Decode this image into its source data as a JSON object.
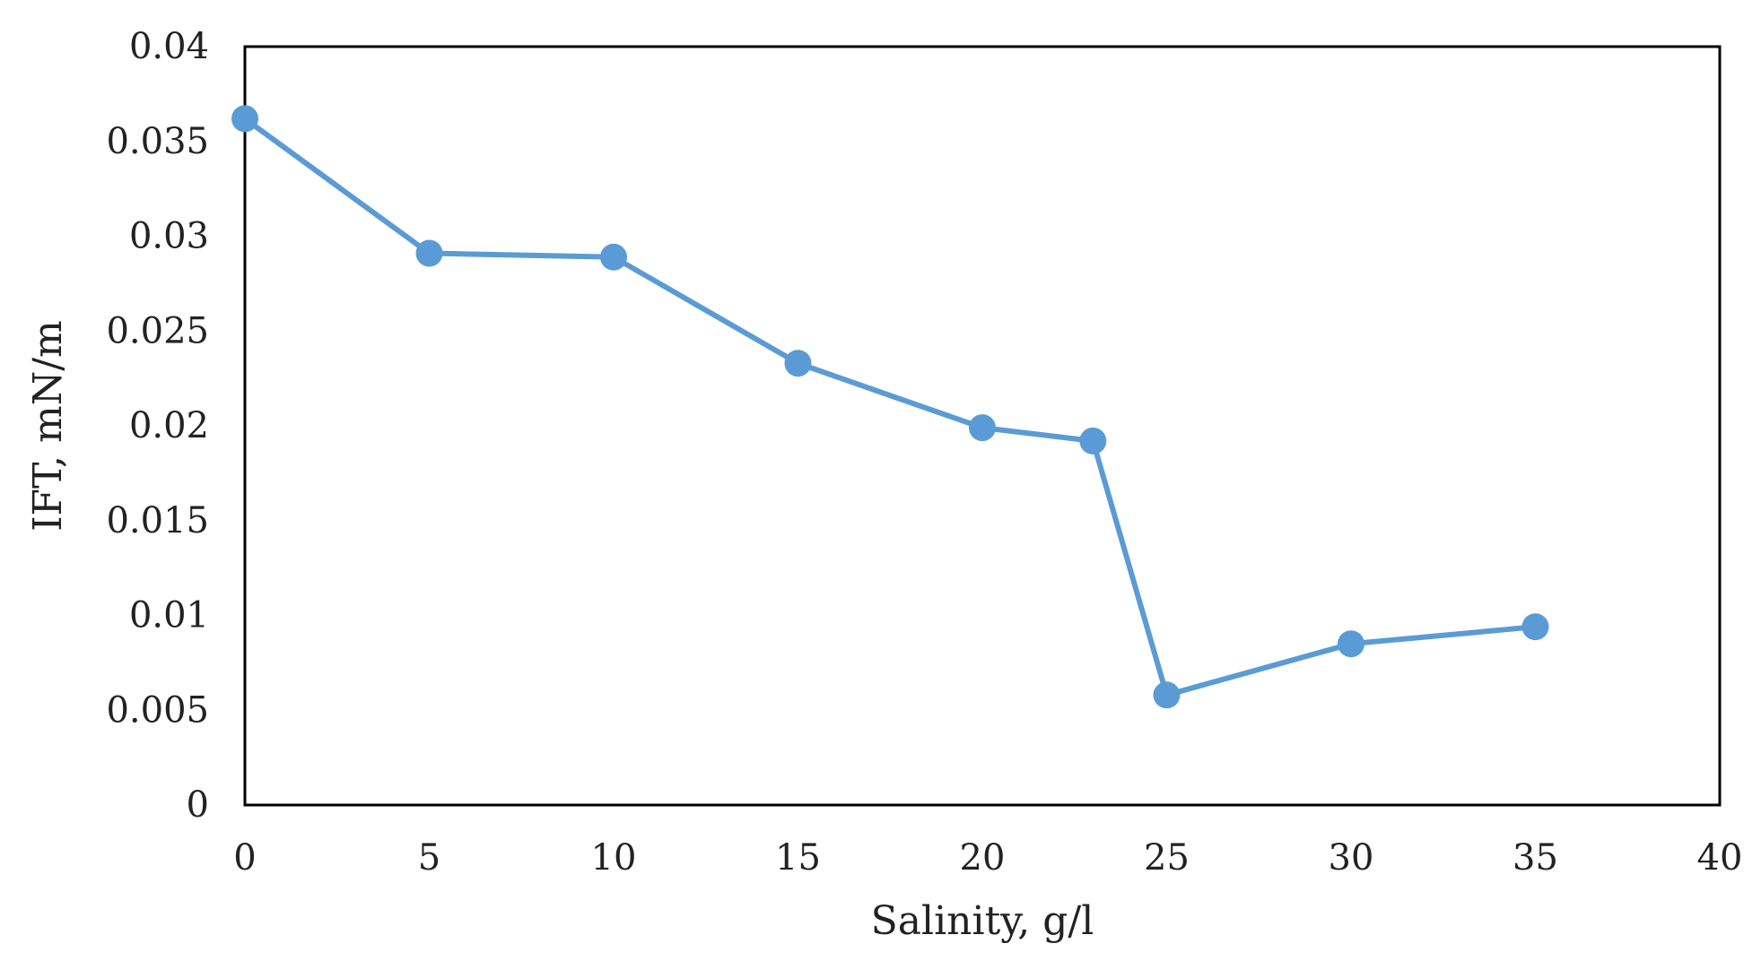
{
  "chart_data": {
    "type": "line",
    "title": "",
    "xlabel": "Salinity, g/l",
    "ylabel": "IFT, mN/m",
    "xlim": [
      0,
      40
    ],
    "ylim": [
      0,
      0.04
    ],
    "x_ticks": [
      "0",
      "5",
      "10",
      "15",
      "20",
      "25",
      "30",
      "35",
      "40"
    ],
    "y_ticks": [
      "0",
      "0.005",
      "0.01",
      "0.015",
      "0.02",
      "0.025",
      "0.03",
      "0.035",
      "0.04"
    ],
    "grid": false,
    "legend": "none",
    "series": [
      {
        "color": "#5b9bd5",
        "marker": "circle",
        "x": [
          0,
          5,
          10,
          15,
          20,
          23,
          25,
          30,
          35
        ],
        "y": [
          0.0362,
          0.0291,
          0.0289,
          0.0233,
          0.0199,
          0.0192,
          0.0058,
          0.0085,
          0.0094
        ]
      }
    ]
  }
}
